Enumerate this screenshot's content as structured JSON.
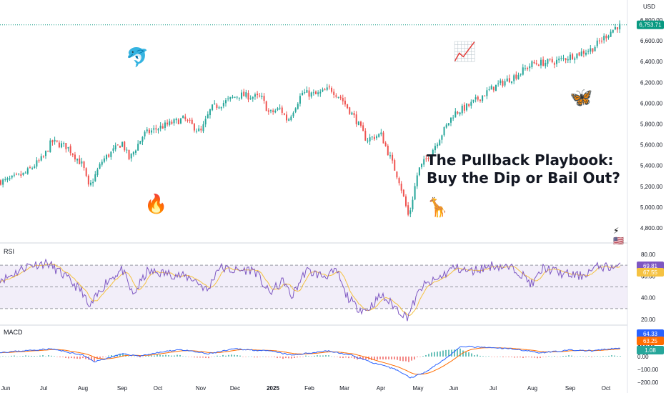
{
  "headline": {
    "line1": "The Pullback Playbook:",
    "line2": "Buy the Dip or Bail Out?"
  },
  "stickers": {
    "dolphin": "🐬",
    "chart_up": "📈",
    "butterfly": "🦋",
    "fire": "🔥",
    "giraffe": "🦒",
    "lightning": "⚡",
    "flag": "🇺🇸"
  },
  "colors": {
    "up": "#26a69a",
    "down": "#ef5350",
    "last_price_badge": "#089981",
    "rsi_line": "#7e57c2",
    "rsi_ma": "#f5c242",
    "rsi_band": "#ede7f6",
    "macd_line": "#2962ff",
    "signal_line": "#ff6d00",
    "grid": "#f0f3fa"
  },
  "chart_data": [
    {
      "type": "candlestick",
      "title": "",
      "currency": "USD",
      "last_price": "6,753.71",
      "ylim": [
        4700,
        6900
      ],
      "y_ticks": [
        "6,800.00",
        "6,600.00",
        "6,400.00",
        "6,200.00",
        "6,000.00",
        "5,800.00",
        "5,600.00",
        "5,400.00",
        "5,200.00",
        "5,000.00",
        "4,800.00"
      ],
      "x_ticks": [
        "Jun",
        "Jul",
        "Aug",
        "Sep",
        "Oct",
        "Nov",
        "Dec",
        "2025",
        "Feb",
        "Mar",
        "Apr",
        "May",
        "Jun",
        "Jul",
        "Aug",
        "Sep",
        "Oct"
      ],
      "close_path": [
        {
          "t": 0.0,
          "v": 5250
        },
        {
          "t": 0.5,
          "v": 5320
        },
        {
          "t": 1.0,
          "v": 5480
        },
        {
          "t": 1.2,
          "v": 5630
        },
        {
          "t": 1.6,
          "v": 5580
        },
        {
          "t": 2.0,
          "v": 5400
        },
        {
          "t": 2.15,
          "v": 5180
        },
        {
          "t": 2.5,
          "v": 5450
        },
        {
          "t": 3.0,
          "v": 5620
        },
        {
          "t": 3.2,
          "v": 5460
        },
        {
          "t": 3.6,
          "v": 5700
        },
        {
          "t": 4.0,
          "v": 5760
        },
        {
          "t": 4.6,
          "v": 5850
        },
        {
          "t": 5.0,
          "v": 5720
        },
        {
          "t": 5.3,
          "v": 5950
        },
        {
          "t": 5.7,
          "v": 6010
        },
        {
          "t": 6.1,
          "v": 6080
        },
        {
          "t": 6.7,
          "v": 6050
        },
        {
          "t": 6.9,
          "v": 5900
        },
        {
          "t": 7.2,
          "v": 5950
        },
        {
          "t": 7.4,
          "v": 5830
        },
        {
          "t": 7.8,
          "v": 6100
        },
        {
          "t": 8.2,
          "v": 6080
        },
        {
          "t": 8.6,
          "v": 6140
        },
        {
          "t": 8.9,
          "v": 6050
        },
        {
          "t": 9.3,
          "v": 5850
        },
        {
          "t": 9.6,
          "v": 5650
        },
        {
          "t": 10.0,
          "v": 5700
        },
        {
          "t": 10.2,
          "v": 5520
        },
        {
          "t": 10.5,
          "v": 5250
        },
        {
          "t": 10.75,
          "v": 4900
        },
        {
          "t": 11.0,
          "v": 5350
        },
        {
          "t": 11.4,
          "v": 5550
        },
        {
          "t": 12.0,
          "v": 5900
        },
        {
          "t": 12.4,
          "v": 5980
        },
        {
          "t": 13.0,
          "v": 6150
        },
        {
          "t": 13.6,
          "v": 6270
        },
        {
          "t": 14.0,
          "v": 6380
        },
        {
          "t": 14.6,
          "v": 6400
        },
        {
          "t": 15.0,
          "v": 6450
        },
        {
          "t": 15.6,
          "v": 6520
        },
        {
          "t": 16.0,
          "v": 6650
        },
        {
          "t": 16.3,
          "v": 6740
        }
      ]
    },
    {
      "type": "line",
      "title": "RSI",
      "ylim": [
        10,
        90
      ],
      "y_ticks": [
        "80.00",
        "60.00",
        "40.00",
        "20.00"
      ],
      "bands": [
        70,
        50,
        30
      ],
      "series": [
        {
          "name": "",
          "last_value": "69.81"
        },
        {
          "name": "",
          "last_value": "67.55"
        }
      ],
      "rsi_path": [
        {
          "t": 0.0,
          "v": 58
        },
        {
          "t": 0.6,
          "v": 70
        },
        {
          "t": 1.1,
          "v": 72
        },
        {
          "t": 1.5,
          "v": 61
        },
        {
          "t": 2.0,
          "v": 45
        },
        {
          "t": 2.15,
          "v": 30
        },
        {
          "t": 2.6,
          "v": 55
        },
        {
          "t": 3.0,
          "v": 66
        },
        {
          "t": 3.3,
          "v": 42
        },
        {
          "t": 3.7,
          "v": 64
        },
        {
          "t": 4.3,
          "v": 62
        },
        {
          "t": 4.8,
          "v": 58
        },
        {
          "t": 5.2,
          "v": 46
        },
        {
          "t": 5.5,
          "v": 68
        },
        {
          "t": 6.0,
          "v": 65
        },
        {
          "t": 6.5,
          "v": 66
        },
        {
          "t": 6.9,
          "v": 44
        },
        {
          "t": 7.3,
          "v": 56
        },
        {
          "t": 7.5,
          "v": 40
        },
        {
          "t": 7.9,
          "v": 65
        },
        {
          "t": 8.4,
          "v": 60
        },
        {
          "t": 8.8,
          "v": 64
        },
        {
          "t": 9.0,
          "v": 45
        },
        {
          "t": 9.3,
          "v": 32
        },
        {
          "t": 9.6,
          "v": 28
        },
        {
          "t": 10.0,
          "v": 42
        },
        {
          "t": 10.3,
          "v": 34
        },
        {
          "t": 10.7,
          "v": 22
        },
        {
          "t": 11.1,
          "v": 50
        },
        {
          "t": 11.5,
          "v": 56
        },
        {
          "t": 12.0,
          "v": 68
        },
        {
          "t": 12.4,
          "v": 64
        },
        {
          "t": 13.0,
          "v": 70
        },
        {
          "t": 13.6,
          "v": 66
        },
        {
          "t": 14.0,
          "v": 52
        },
        {
          "t": 14.3,
          "v": 68
        },
        {
          "t": 14.8,
          "v": 62
        },
        {
          "t": 15.3,
          "v": 60
        },
        {
          "t": 15.8,
          "v": 69
        },
        {
          "t": 16.3,
          "v": 68
        }
      ]
    },
    {
      "type": "line",
      "title": "MACD",
      "ylim": [
        -200,
        120
      ],
      "y_ticks": [
        "100.00",
        "0.00",
        "−100.00",
        "−200.00"
      ],
      "series": [
        {
          "name": "",
          "last_value": "64.33"
        },
        {
          "name": "",
          "last_value": "63.25"
        },
        {
          "name": "",
          "last_value": "1.08"
        }
      ],
      "macd_path": [
        {
          "t": 0.0,
          "v": 35
        },
        {
          "t": 1.2,
          "v": 60
        },
        {
          "t": 2.0,
          "v": 10
        },
        {
          "t": 2.3,
          "v": -40
        },
        {
          "t": 3.0,
          "v": 20
        },
        {
          "t": 3.5,
          "v": 5
        },
        {
          "t": 4.5,
          "v": 55
        },
        {
          "t": 5.2,
          "v": 20
        },
        {
          "t": 6.0,
          "v": 60
        },
        {
          "t": 7.0,
          "v": 40
        },
        {
          "t": 7.5,
          "v": 10
        },
        {
          "t": 8.5,
          "v": 45
        },
        {
          "t": 9.2,
          "v": 10
        },
        {
          "t": 9.8,
          "v": -50
        },
        {
          "t": 10.4,
          "v": -100
        },
        {
          "t": 10.8,
          "v": -165
        },
        {
          "t": 11.2,
          "v": -120
        },
        {
          "t": 11.8,
          "v": -10
        },
        {
          "t": 12.2,
          "v": 80
        },
        {
          "t": 12.8,
          "v": 70
        },
        {
          "t": 13.5,
          "v": 60
        },
        {
          "t": 14.2,
          "v": 30
        },
        {
          "t": 15.0,
          "v": 50
        },
        {
          "t": 15.6,
          "v": 45
        },
        {
          "t": 16.3,
          "v": 64
        }
      ]
    }
  ]
}
